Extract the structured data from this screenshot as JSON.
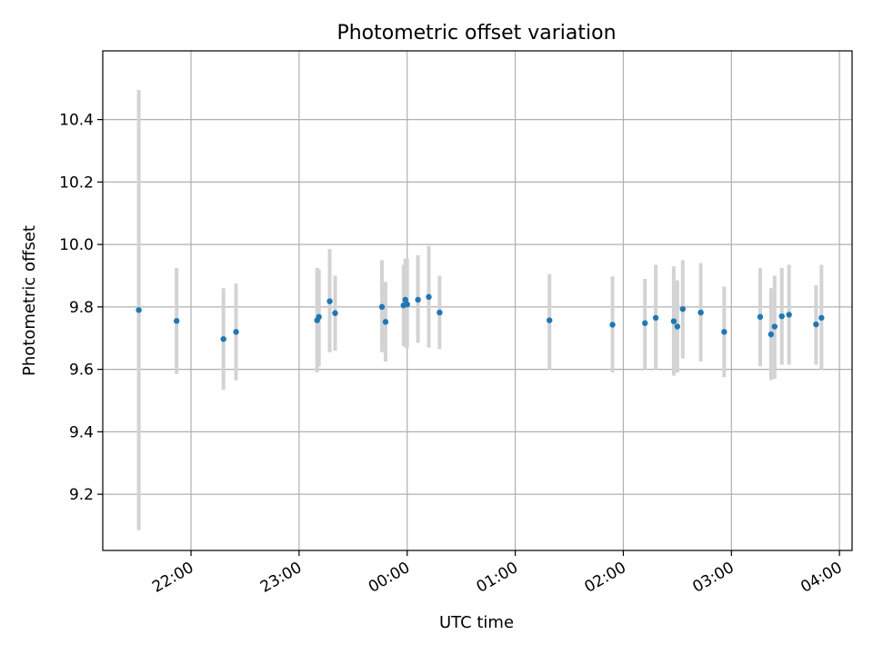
{
  "chart_data": {
    "type": "scatter",
    "title": "Photometric offset variation",
    "xlabel": "UTC time",
    "ylabel": "Photometric offset",
    "x_axis_type": "time",
    "x_start_date": "2000-01-01",
    "xlim": [
      "21:11",
      "04:07"
    ],
    "ylim": [
      9.02,
      10.62
    ],
    "x_ticks": [
      "22:00",
      "23:00",
      "00:00",
      "01:00",
      "02:00",
      "03:00",
      "04:00"
    ],
    "y_ticks": [
      9.2,
      9.4,
      9.6,
      9.8,
      10.0,
      10.2,
      10.4
    ],
    "y_tick_labels": [
      "9.2",
      "9.4",
      "9.6",
      "9.8",
      "10.0",
      "10.2",
      "10.4"
    ],
    "grid": true,
    "colors": {
      "point": "#1f77b4",
      "errorbar": "#d3d3d3",
      "grid": "#b0b0b0",
      "axes": "#000000"
    },
    "series": [
      {
        "points": [
          {
            "x": "21:31",
            "y": 9.79,
            "ymin": 9.085,
            "ymax": 10.495
          },
          {
            "x": "21:52",
            "y": 9.755,
            "ymin": 9.585,
            "ymax": 9.925
          },
          {
            "x": "22:18",
            "y": 9.697,
            "ymin": 9.535,
            "ymax": 9.86
          },
          {
            "x": "22:25",
            "y": 9.72,
            "ymin": 9.565,
            "ymax": 9.875
          },
          {
            "x": "23:10",
            "y": 9.757,
            "ymin": 9.59,
            "ymax": 9.925
          },
          {
            "x": "23:11",
            "y": 9.768,
            "ymin": 9.61,
            "ymax": 9.92
          },
          {
            "x": "23:17",
            "y": 9.818,
            "ymin": 9.655,
            "ymax": 9.985
          },
          {
            "x": "23:20",
            "y": 9.78,
            "ymin": 9.66,
            "ymax": 9.9
          },
          {
            "x": "23:46",
            "y": 9.8,
            "ymin": 9.655,
            "ymax": 9.95
          },
          {
            "x": "23:48",
            "y": 9.752,
            "ymin": 9.625,
            "ymax": 9.88
          },
          {
            "x": "23:58",
            "y": 9.805,
            "ymin": 9.675,
            "ymax": 9.935
          },
          {
            "x": "23:59",
            "y": 9.823,
            "ymin": 9.67,
            "ymax": 9.955
          },
          {
            "x": "00:00",
            "y": 9.808,
            "ymin": 9.67,
            "ymax": 9.955
          },
          {
            "x": "00:06",
            "y": 9.823,
            "ymin": 9.685,
            "ymax": 9.965
          },
          {
            "x": "00:12",
            "y": 9.832,
            "ymin": 9.67,
            "ymax": 9.995
          },
          {
            "x": "00:18",
            "y": 9.782,
            "ymin": 9.665,
            "ymax": 9.9
          },
          {
            "x": "01:19",
            "y": 9.757,
            "ymin": 9.6,
            "ymax": 9.905
          },
          {
            "x": "01:54",
            "y": 9.743,
            "ymin": 9.59,
            "ymax": 9.898
          },
          {
            "x": "02:12",
            "y": 9.748,
            "ymin": 9.6,
            "ymax": 9.89
          },
          {
            "x": "02:18",
            "y": 9.765,
            "ymin": 9.6,
            "ymax": 9.935
          },
          {
            "x": "02:28",
            "y": 9.754,
            "ymin": 9.58,
            "ymax": 9.93
          },
          {
            "x": "02:30",
            "y": 9.737,
            "ymin": 9.59,
            "ymax": 9.885
          },
          {
            "x": "02:33",
            "y": 9.793,
            "ymin": 9.635,
            "ymax": 9.95
          },
          {
            "x": "02:43",
            "y": 9.782,
            "ymin": 9.625,
            "ymax": 9.94
          },
          {
            "x": "02:56",
            "y": 9.72,
            "ymin": 9.575,
            "ymax": 9.865
          },
          {
            "x": "03:16",
            "y": 9.768,
            "ymin": 9.61,
            "ymax": 9.925
          },
          {
            "x": "03:22",
            "y": 9.712,
            "ymin": 9.565,
            "ymax": 9.86
          },
          {
            "x": "03:24",
            "y": 9.737,
            "ymin": 9.57,
            "ymax": 9.9
          },
          {
            "x": "03:28",
            "y": 9.77,
            "ymin": 9.615,
            "ymax": 9.925
          },
          {
            "x": "03:32",
            "y": 9.775,
            "ymin": 9.615,
            "ymax": 9.935
          },
          {
            "x": "03:47",
            "y": 9.744,
            "ymin": 9.615,
            "ymax": 9.87
          },
          {
            "x": "03:50",
            "y": 9.765,
            "ymin": 9.6,
            "ymax": 9.935
          }
        ]
      }
    ]
  }
}
